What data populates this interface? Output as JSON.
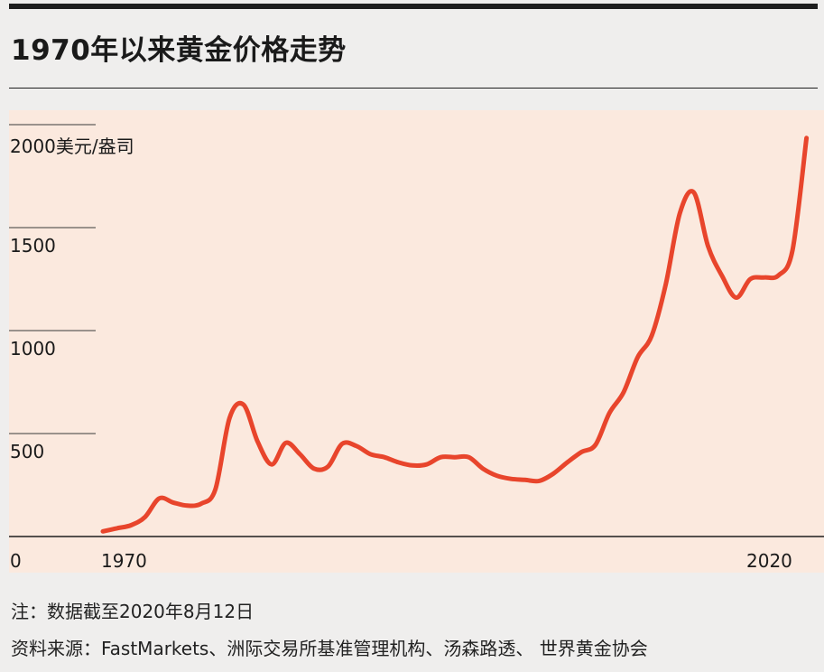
{
  "title": "1970年以来黄金价格走势",
  "colors": {
    "line": "#e8452c",
    "plot_bg": "#fbe9de",
    "page_bg": "#efeeed",
    "rule": "#1e1e1e"
  },
  "chart_data": {
    "type": "line",
    "title": "1970年以来黄金价格走势",
    "xlabel": "",
    "ylabel": "美元/盎司",
    "xlim": [
      1970,
      2020.6
    ],
    "ylim": [
      0,
      2000
    ],
    "y_tick_labels": [
      "0",
      "500",
      "1000",
      "1500",
      "2000美元/盎司"
    ],
    "x_tick_labels": [
      "1970",
      "2020"
    ],
    "grid": "horizontal",
    "series": [
      {
        "x": [
          1970,
          1971,
          1972,
          1973,
          1974,
          1975,
          1976,
          1977,
          1978,
          1979,
          1980,
          1981,
          1982,
          1983,
          1984,
          1985,
          1986,
          1987,
          1988,
          1989,
          1990,
          1991,
          1992,
          1993,
          1994,
          1995,
          1996,
          1997,
          1998,
          1999,
          2000,
          2001,
          2002,
          2003,
          2004,
          2005,
          2006,
          2007,
          2008,
          2009,
          2010,
          2011,
          2012,
          2013,
          2014,
          2015,
          2016,
          2017,
          2018,
          2019,
          2020
        ],
        "y": [
          25,
          40,
          55,
          95,
          185,
          165,
          150,
          160,
          230,
          575,
          640,
          460,
          350,
          455,
          400,
          330,
          340,
          450,
          440,
          400,
          385,
          360,
          345,
          350,
          385,
          385,
          385,
          330,
          295,
          280,
          275,
          270,
          305,
          360,
          410,
          445,
          600,
          700,
          870,
          975,
          1225,
          1570,
          1670,
          1410,
          1265,
          1160,
          1250,
          1258,
          1268,
          1390,
          1935
        ]
      }
    ]
  },
  "notes": {
    "date": "注：数据截至2020年8月12日",
    "source": "资料来源：FastMarkets、洲际交易所基准管理机构、汤森路透、 世界黄金协会"
  }
}
